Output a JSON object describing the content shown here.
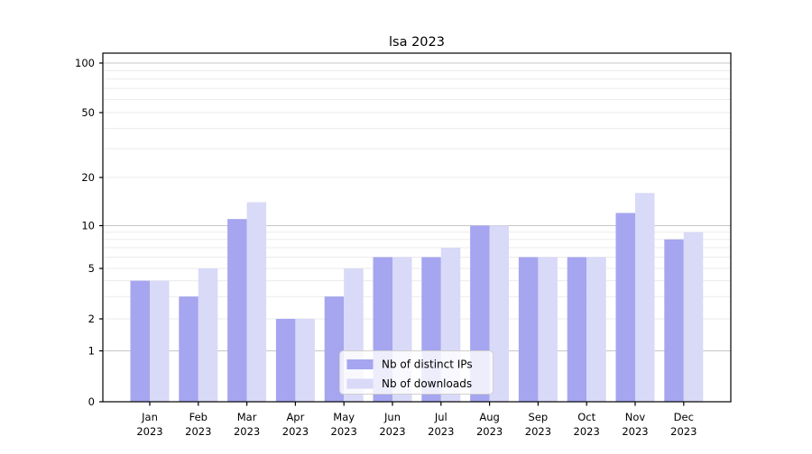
{
  "title": "lsa 2023",
  "legend": {
    "items": [
      {
        "label": "Nb of distinct IPs"
      },
      {
        "label": "Nb of downloads"
      }
    ]
  },
  "y_axis": {
    "tick_values": [
      0,
      1,
      2,
      5,
      10,
      20,
      50,
      100
    ],
    "scale": "log-like"
  },
  "x_axis": {
    "months": [
      "Jan",
      "Feb",
      "Mar",
      "Apr",
      "May",
      "Jun",
      "Jul",
      "Aug",
      "Sep",
      "Oct",
      "Nov",
      "Dec"
    ],
    "year": "2023"
  },
  "colors": {
    "distinct_ips": "#a5a5f0",
    "downloads": "#d9d9f8",
    "grid_major": "#c6c6c6",
    "grid_minor": "#ebebeb",
    "axis": "#000000",
    "legend_border": "#d0d0d0",
    "background": "#ffffff"
  },
  "chart_data": {
    "type": "bar",
    "title": "lsa 2023",
    "categories": [
      "Jan 2023",
      "Feb 2023",
      "Mar 2023",
      "Apr 2023",
      "May 2023",
      "Jun 2023",
      "Jul 2023",
      "Aug 2023",
      "Sep 2023",
      "Oct 2023",
      "Nov 2023",
      "Dec 2023"
    ],
    "series": [
      {
        "name": "Nb of distinct IPs",
        "values": [
          4,
          3,
          11,
          2,
          3,
          6,
          6,
          10,
          6,
          6,
          12,
          8
        ]
      },
      {
        "name": "Nb of downloads",
        "values": [
          4,
          5,
          14,
          2,
          5,
          6,
          7,
          10,
          6,
          6,
          16,
          9
        ]
      }
    ],
    "xlabel": "",
    "ylabel": "",
    "y_ticks": [
      0,
      1,
      2,
      5,
      10,
      20,
      50,
      100
    ],
    "minor_gridlines": [
      2,
      3,
      4,
      5,
      6,
      7,
      8,
      9,
      20,
      30,
      40,
      50,
      60,
      70,
      80,
      90
    ],
    "major_gridlines": [
      1,
      10,
      100
    ],
    "ylim": [
      0,
      115
    ],
    "grid": true,
    "legend_position": "lower center"
  }
}
